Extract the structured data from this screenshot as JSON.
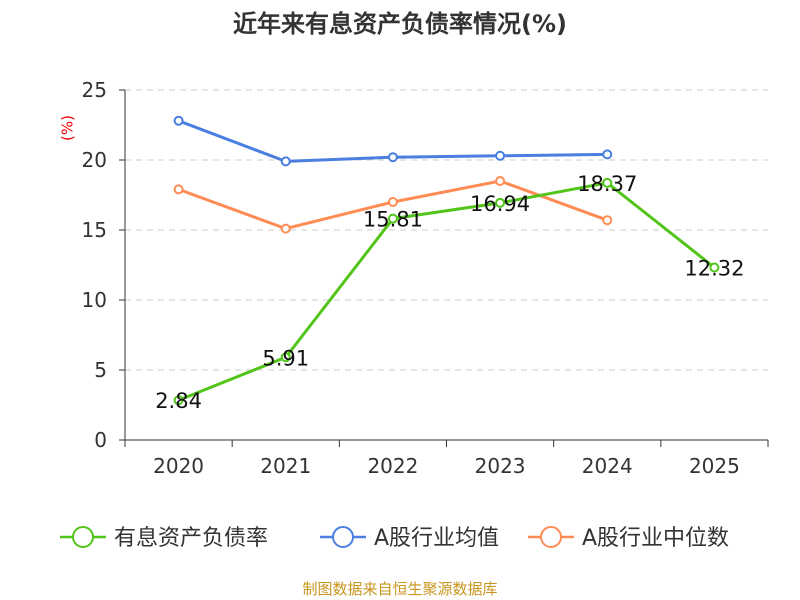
{
  "chart_data": {
    "type": "line",
    "title": "近年来有息资产负债率情况(%)",
    "ylabel": "(%)",
    "categories": [
      "2020",
      "2021",
      "2022",
      "2023",
      "2024",
      "2025"
    ],
    "ylim": [
      0,
      25
    ],
    "yticks": [
      "0",
      "5",
      "10",
      "15",
      "20",
      "25"
    ],
    "grid": true,
    "legend_position": "bottom",
    "series": [
      {
        "name": "有息资产负债率",
        "color": "#52c41a",
        "values": [
          2.84,
          5.91,
          15.81,
          16.94,
          18.37,
          12.32
        ],
        "labels": [
          "2.84",
          "5.91",
          "15.81",
          "16.94",
          "18.37",
          "12.32"
        ]
      },
      {
        "name": "A股行业均值",
        "color": "#4a7fe0",
        "values": [
          22.8,
          19.9,
          20.2,
          20.3,
          20.4,
          null
        ]
      },
      {
        "name": "A股行业中位数",
        "color": "#ff8c55",
        "values": [
          17.9,
          15.1,
          17.0,
          18.5,
          15.7,
          null
        ]
      }
    ]
  },
  "source": "制图数据来自恒生聚源数据库"
}
